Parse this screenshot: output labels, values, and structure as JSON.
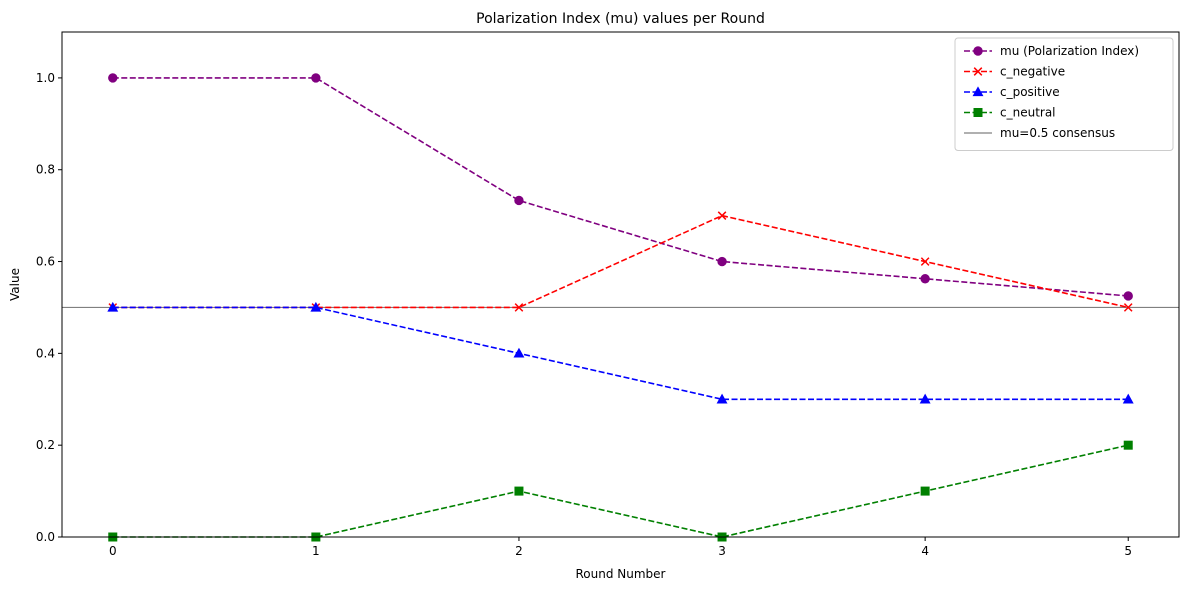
{
  "chart_data": {
    "type": "line",
    "title": "Polarization Index (mu) values per Round",
    "xlabel": "Round Number",
    "ylabel": "Value",
    "x": [
      0,
      1,
      2,
      3,
      4,
      5
    ],
    "xlim": [
      -0.25,
      5.25
    ],
    "ylim": [
      0.0,
      1.1
    ],
    "xticks": [
      "0",
      "1",
      "2",
      "3",
      "4",
      "5"
    ],
    "yticks": [
      "0.0",
      "0.2",
      "0.4",
      "0.6",
      "0.8",
      "1.0"
    ],
    "grid": false,
    "legend_position": "top-right",
    "series": [
      {
        "name": "mu (Polarization Index)",
        "values": [
          1.0,
          1.0,
          0.733,
          0.6,
          0.5625,
          0.525
        ],
        "color": "#800080",
        "marker": "circle",
        "linestyle": "dashed"
      },
      {
        "name": "c_negative",
        "values": [
          0.5,
          0.5,
          0.5,
          0.7,
          0.6,
          0.5
        ],
        "color": "#ff0000",
        "marker": "x",
        "linestyle": "dashed"
      },
      {
        "name": "c_positive",
        "values": [
          0.5,
          0.5,
          0.4,
          0.3,
          0.3,
          0.3
        ],
        "color": "#0000ff",
        "marker": "triangle",
        "linestyle": "dashed"
      },
      {
        "name": "c_neutral",
        "values": [
          0.0,
          0.0,
          0.1,
          0.0,
          0.1,
          0.2
        ],
        "color": "#008000",
        "marker": "square",
        "linestyle": "dashed"
      }
    ],
    "reference_lines": [
      {
        "name": "mu=0.5 consensus",
        "y": 0.5,
        "color": "#808080",
        "linestyle": "solid"
      }
    ]
  }
}
